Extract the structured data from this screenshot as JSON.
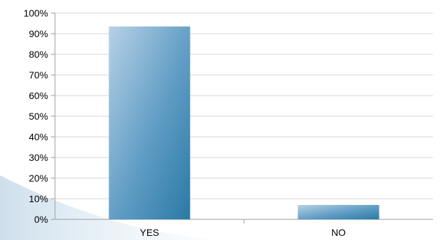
{
  "chart_data": {
    "type": "bar",
    "title": "",
    "xlabel": "",
    "ylabel": "",
    "categories": [
      "YES",
      "NO"
    ],
    "values": [
      93.5,
      7
    ],
    "ylim": [
      0,
      100
    ],
    "y_ticks": [
      0,
      10,
      20,
      30,
      40,
      50,
      60,
      70,
      80,
      90,
      100
    ],
    "y_tick_labels": [
      "0%",
      "10%",
      "20%",
      "30%",
      "40%",
      "50%",
      "60%",
      "70%",
      "80%",
      "90%",
      "100%"
    ],
    "grid": true,
    "legend": "none",
    "colors": {
      "bar_light": "#a9c7df",
      "bar_dark": "#2f7fa9",
      "grid": "#d4d4d4",
      "axis": "#9a9a9a",
      "background_wave": "#cfe2ef"
    }
  }
}
